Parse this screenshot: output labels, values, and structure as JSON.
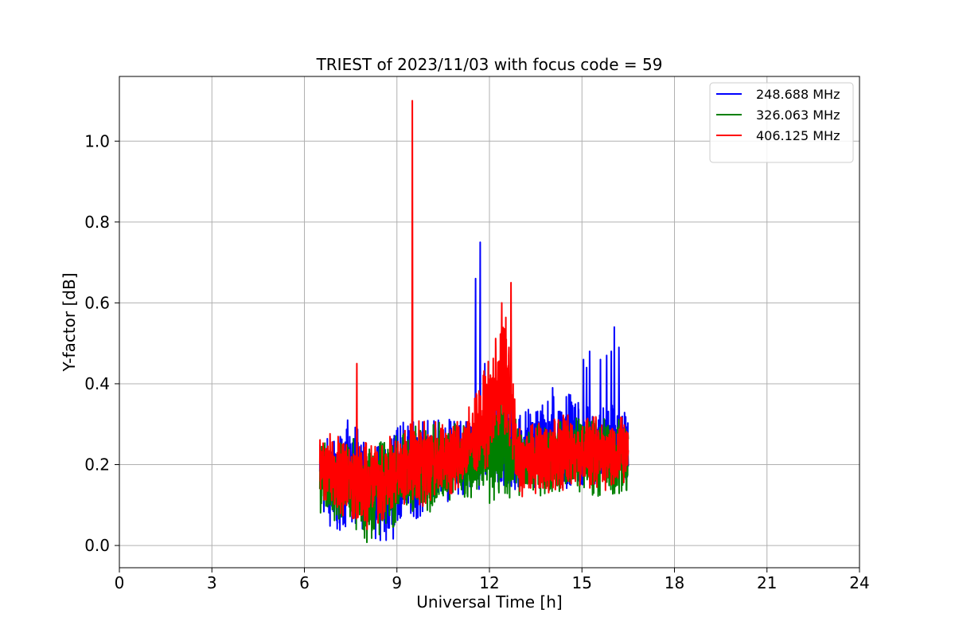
{
  "chart_data": {
    "type": "line",
    "title": "TRIEST of 2023/11/03 with focus code = 59",
    "xlabel": "Universal Time [h]",
    "ylabel": "Y-factor [dB]",
    "xlim": [
      0,
      24
    ],
    "ylim": [
      -0.055,
      1.16
    ],
    "xticks": [
      0,
      3,
      6,
      9,
      12,
      15,
      18,
      21,
      24
    ],
    "yticks": [
      0.0,
      0.2,
      0.4,
      0.6,
      0.8,
      1.0
    ],
    "ytick_labels": [
      "0.0",
      "0.2",
      "0.4",
      "0.6",
      "0.8",
      "1.0"
    ],
    "grid": true,
    "legend_position": "top-right",
    "series": [
      {
        "name": "248.688 MHz",
        "color": "#0000ff",
        "envelope": [
          {
            "x": 6.5,
            "lo": 0.08,
            "hi": 0.27
          },
          {
            "x": 7.0,
            "lo": 0.03,
            "hi": 0.27
          },
          {
            "x": 7.5,
            "lo": 0.04,
            "hi": 0.31
          },
          {
            "x": 8.0,
            "lo": 0.04,
            "hi": 0.26
          },
          {
            "x": 8.5,
            "lo": 0.0,
            "hi": 0.25
          },
          {
            "x": 9.0,
            "lo": 0.02,
            "hi": 0.31
          },
          {
            "x": 9.5,
            "lo": 0.06,
            "hi": 0.32
          },
          {
            "x": 10.0,
            "lo": 0.08,
            "hi": 0.31
          },
          {
            "x": 10.5,
            "lo": 0.1,
            "hi": 0.31
          },
          {
            "x": 11.0,
            "lo": 0.12,
            "hi": 0.32
          },
          {
            "x": 11.5,
            "lo": 0.12,
            "hi": 0.32
          },
          {
            "x": 12.0,
            "lo": 0.14,
            "hi": 0.33
          },
          {
            "x": 12.5,
            "lo": 0.12,
            "hi": 0.36
          },
          {
            "x": 13.0,
            "lo": 0.13,
            "hi": 0.34
          },
          {
            "x": 13.5,
            "lo": 0.14,
            "hi": 0.34
          },
          {
            "x": 14.0,
            "lo": 0.14,
            "hi": 0.37
          },
          {
            "x": 14.5,
            "lo": 0.14,
            "hi": 0.38
          },
          {
            "x": 15.0,
            "lo": 0.14,
            "hi": 0.35
          },
          {
            "x": 15.5,
            "lo": 0.14,
            "hi": 0.34
          },
          {
            "x": 16.0,
            "lo": 0.14,
            "hi": 0.35
          },
          {
            "x": 16.5,
            "lo": 0.15,
            "hi": 0.34
          }
        ],
        "peaks": [
          {
            "x": 7.4,
            "y": 0.31
          },
          {
            "x": 11.55,
            "y": 0.66
          },
          {
            "x": 11.7,
            "y": 0.75
          },
          {
            "x": 11.85,
            "y": 0.45
          },
          {
            "x": 14.05,
            "y": 0.39
          },
          {
            "x": 15.05,
            "y": 0.46
          },
          {
            "x": 15.15,
            "y": 0.44
          },
          {
            "x": 15.25,
            "y": 0.48
          },
          {
            "x": 15.6,
            "y": 0.46
          },
          {
            "x": 15.8,
            "y": 0.47
          },
          {
            "x": 15.95,
            "y": 0.48
          },
          {
            "x": 16.05,
            "y": 0.54
          },
          {
            "x": 16.2,
            "y": 0.49
          }
        ]
      },
      {
        "name": "326.063 MHz",
        "color": "#008000",
        "envelope": [
          {
            "x": 6.5,
            "lo": 0.05,
            "hi": 0.26
          },
          {
            "x": 7.0,
            "lo": 0.06,
            "hi": 0.25
          },
          {
            "x": 7.5,
            "lo": 0.06,
            "hi": 0.27
          },
          {
            "x": 8.0,
            "lo": 0.0,
            "hi": 0.26
          },
          {
            "x": 8.5,
            "lo": 0.03,
            "hi": 0.26
          },
          {
            "x": 9.0,
            "lo": 0.05,
            "hi": 0.28
          },
          {
            "x": 9.5,
            "lo": 0.07,
            "hi": 0.29
          },
          {
            "x": 10.0,
            "lo": 0.08,
            "hi": 0.32
          },
          {
            "x": 10.5,
            "lo": 0.1,
            "hi": 0.31
          },
          {
            "x": 11.0,
            "lo": 0.11,
            "hi": 0.3
          },
          {
            "x": 11.5,
            "lo": 0.12,
            "hi": 0.29
          },
          {
            "x": 12.0,
            "lo": 0.1,
            "hi": 0.35
          },
          {
            "x": 12.5,
            "lo": 0.11,
            "hi": 0.37
          },
          {
            "x": 13.0,
            "lo": 0.12,
            "hi": 0.3
          },
          {
            "x": 13.5,
            "lo": 0.12,
            "hi": 0.3
          },
          {
            "x": 14.0,
            "lo": 0.13,
            "hi": 0.31
          },
          {
            "x": 14.5,
            "lo": 0.12,
            "hi": 0.31
          },
          {
            "x": 15.0,
            "lo": 0.13,
            "hi": 0.32
          },
          {
            "x": 15.5,
            "lo": 0.12,
            "hi": 0.32
          },
          {
            "x": 16.0,
            "lo": 0.12,
            "hi": 0.32
          },
          {
            "x": 16.5,
            "lo": 0.12,
            "hi": 0.32
          }
        ],
        "peaks": [
          {
            "x": 12.35,
            "y": 0.37
          }
        ]
      },
      {
        "name": "406.125 MHz",
        "color": "#ff0000",
        "envelope": [
          {
            "x": 6.5,
            "lo": 0.1,
            "hi": 0.28
          },
          {
            "x": 7.0,
            "lo": 0.08,
            "hi": 0.29
          },
          {
            "x": 7.5,
            "lo": 0.06,
            "hi": 0.27
          },
          {
            "x": 8.0,
            "lo": 0.03,
            "hi": 0.26
          },
          {
            "x": 8.5,
            "lo": 0.06,
            "hi": 0.26
          },
          {
            "x": 9.0,
            "lo": 0.08,
            "hi": 0.28
          },
          {
            "x": 9.5,
            "lo": 0.09,
            "hi": 0.31
          },
          {
            "x": 10.0,
            "lo": 0.1,
            "hi": 0.31
          },
          {
            "x": 10.5,
            "lo": 0.12,
            "hi": 0.32
          },
          {
            "x": 11.0,
            "lo": 0.13,
            "hi": 0.31
          },
          {
            "x": 11.5,
            "lo": 0.16,
            "hi": 0.36
          },
          {
            "x": 11.8,
            "lo": 0.18,
            "hi": 0.43
          },
          {
            "x": 12.0,
            "lo": 0.2,
            "hi": 0.47
          },
          {
            "x": 12.2,
            "lo": 0.23,
            "hi": 0.52
          },
          {
            "x": 12.4,
            "lo": 0.24,
            "hi": 0.56
          },
          {
            "x": 12.6,
            "lo": 0.22,
            "hi": 0.58
          },
          {
            "x": 12.9,
            "lo": 0.12,
            "hi": 0.3
          },
          {
            "x": 13.5,
            "lo": 0.12,
            "hi": 0.31
          },
          {
            "x": 14.0,
            "lo": 0.13,
            "hi": 0.32
          },
          {
            "x": 14.5,
            "lo": 0.13,
            "hi": 0.33
          },
          {
            "x": 15.0,
            "lo": 0.14,
            "hi": 0.32
          },
          {
            "x": 15.5,
            "lo": 0.13,
            "hi": 0.32
          },
          {
            "x": 16.0,
            "lo": 0.14,
            "hi": 0.32
          },
          {
            "x": 16.5,
            "lo": 0.15,
            "hi": 0.32
          }
        ],
        "peaks": [
          {
            "x": 7.7,
            "y": 0.45
          },
          {
            "x": 9.5,
            "y": 1.1
          },
          {
            "x": 12.4,
            "y": 0.6
          },
          {
            "x": 12.7,
            "y": 0.65
          }
        ]
      }
    ]
  }
}
